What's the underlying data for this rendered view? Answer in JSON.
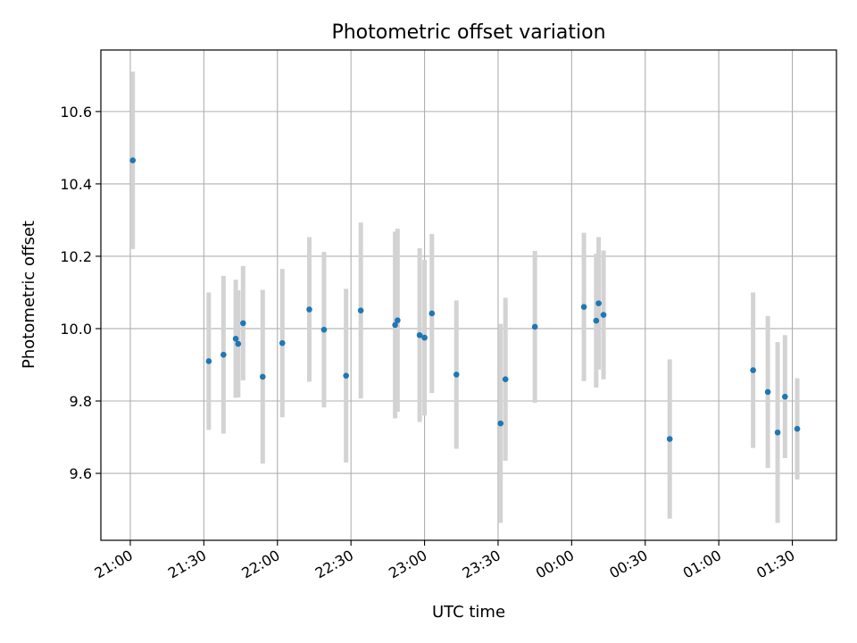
{
  "chart_data": {
    "type": "scatter",
    "title": "Photometric offset variation",
    "xlabel": "UTC time",
    "ylabel": "Photometric offset",
    "x_ticks": [
      "21:00",
      "21:30",
      "22:00",
      "22:30",
      "23:00",
      "23:30",
      "00:00",
      "00:30",
      "01:00",
      "01:30"
    ],
    "y_ticks": [
      "9.6",
      "9.8",
      "10.0",
      "10.2",
      "10.4",
      "10.6"
    ],
    "xlim": [
      "20:48",
      "01:48"
    ],
    "ylim": [
      9.415,
      10.77
    ],
    "grid": true,
    "colors": {
      "points": "#1f77b4",
      "errorbars": "#d3d3d3",
      "grid": "#b0b0b0"
    },
    "series": [
      {
        "points": [
          {
            "t": "21:01",
            "y": 10.465,
            "err": 0.245
          },
          {
            "t": "21:32",
            "y": 9.91,
            "err": 0.19
          },
          {
            "t": "21:38",
            "y": 9.928,
            "err": 0.218
          },
          {
            "t": "21:43",
            "y": 9.972,
            "err": 0.163
          },
          {
            "t": "21:44",
            "y": 9.958,
            "err": 0.148
          },
          {
            "t": "21:46",
            "y": 10.015,
            "err": 0.158
          },
          {
            "t": "21:54",
            "y": 9.867,
            "err": 0.24
          },
          {
            "t": "22:02",
            "y": 9.96,
            "err": 0.205
          },
          {
            "t": "22:13",
            "y": 10.053,
            "err": 0.2
          },
          {
            "t": "22:19",
            "y": 9.997,
            "err": 0.215
          },
          {
            "t": "22:28",
            "y": 9.87,
            "err": 0.24
          },
          {
            "t": "22:34",
            "y": 10.05,
            "err": 0.243
          },
          {
            "t": "22:48",
            "y": 10.01,
            "err": 0.258
          },
          {
            "t": "22:49",
            "y": 10.023,
            "err": 0.253
          },
          {
            "t": "22:58",
            "y": 9.982,
            "err": 0.24
          },
          {
            "t": "23:00",
            "y": 9.975,
            "err": 0.215
          },
          {
            "t": "23:03",
            "y": 10.042,
            "err": 0.22
          },
          {
            "t": "23:13",
            "y": 9.873,
            "err": 0.205
          },
          {
            "t": "23:31",
            "y": 9.738,
            "err": 0.275
          },
          {
            "t": "23:33",
            "y": 9.86,
            "err": 0.225
          },
          {
            "t": "23:45",
            "y": 10.005,
            "err": 0.21
          },
          {
            "t": "00:05",
            "y": 10.06,
            "err": 0.205
          },
          {
            "t": "00:10",
            "y": 10.022,
            "err": 0.185
          },
          {
            "t": "00:11",
            "y": 10.07,
            "err": 0.183
          },
          {
            "t": "00:13",
            "y": 10.038,
            "err": 0.178
          },
          {
            "t": "00:40",
            "y": 9.695,
            "err": 0.22
          },
          {
            "t": "01:14",
            "y": 9.885,
            "err": 0.215
          },
          {
            "t": "01:20",
            "y": 9.825,
            "err": 0.21
          },
          {
            "t": "01:24",
            "y": 9.713,
            "err": 0.25
          },
          {
            "t": "01:27",
            "y": 9.812,
            "err": 0.17
          },
          {
            "t": "01:32",
            "y": 9.723,
            "err": 0.14
          }
        ]
      }
    ]
  }
}
